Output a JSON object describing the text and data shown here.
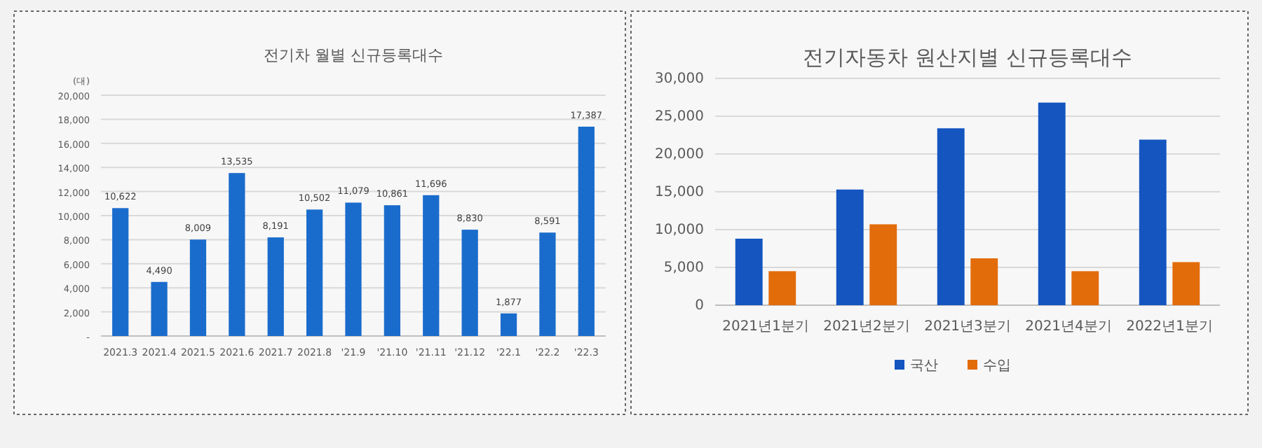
{
  "chart_data": [
    {
      "type": "bar",
      "title": "전기차 월별 신규등록대수",
      "ylabel": "(대)",
      "categories": [
        "2021.3",
        "2021.4",
        "2021.5",
        "2021.6",
        "2021.7",
        "2021.8",
        "'21.9",
        "'21.10",
        "'21.11",
        "'21.12",
        "'22.1",
        "'22.2",
        "'22.3"
      ],
      "values": [
        10622,
        4490,
        8009,
        13535,
        8191,
        10502,
        11079,
        10861,
        11696,
        8830,
        1877,
        8591,
        17387
      ],
      "value_labels": [
        "10,622",
        "4,490",
        "8,009",
        "13,535",
        "8,191",
        "10,502",
        "11,079",
        "10,861",
        "11,696",
        "8,830",
        "1,877",
        "8,591",
        "17,387"
      ],
      "color": "#1a6ccc",
      "ylim": [
        0,
        20000
      ],
      "yticks": [
        {
          "value": 0,
          "label": "-"
        },
        {
          "value": 2000,
          "label": "2,000"
        },
        {
          "value": 4000,
          "label": "4,000"
        },
        {
          "value": 6000,
          "label": "6,000"
        },
        {
          "value": 8000,
          "label": "8,000"
        },
        {
          "value": 10000,
          "label": "10,000"
        },
        {
          "value": 12000,
          "label": "12,000"
        },
        {
          "value": 14000,
          "label": "14,000"
        },
        {
          "value": 16000,
          "label": "16,000"
        },
        {
          "value": 18000,
          "label": "18,000"
        },
        {
          "value": 20000,
          "label": "20,000"
        }
      ],
      "grid": "y"
    },
    {
      "type": "bar",
      "title": "전기자동차 원산지별 신규등록대수",
      "categories": [
        "2021년1분기",
        "2021년2분기",
        "2021년3분기",
        "2021년4분기",
        "2022년1분기"
      ],
      "series": [
        {
          "name": "국산",
          "color": "#1455c0",
          "values": [
            8800,
            15300,
            23400,
            26800,
            21900
          ]
        },
        {
          "name": "수입",
          "color": "#e36c0a",
          "values": [
            4500,
            10700,
            6200,
            4500,
            5700
          ]
        }
      ],
      "ylim": [
        0,
        30000
      ],
      "yticks": [
        0,
        {
          "value": 5000,
          "label": "5,000"
        },
        {
          "value": 10000,
          "label": "10,000"
        },
        {
          "value": 15000,
          "label": "15,000"
        },
        {
          "value": 20000,
          "label": "20,000"
        },
        {
          "value": 25000,
          "label": "25,000"
        },
        {
          "value": 30000,
          "label": "30,000"
        }
      ],
      "grid": "y",
      "legend": "bottom"
    }
  ]
}
